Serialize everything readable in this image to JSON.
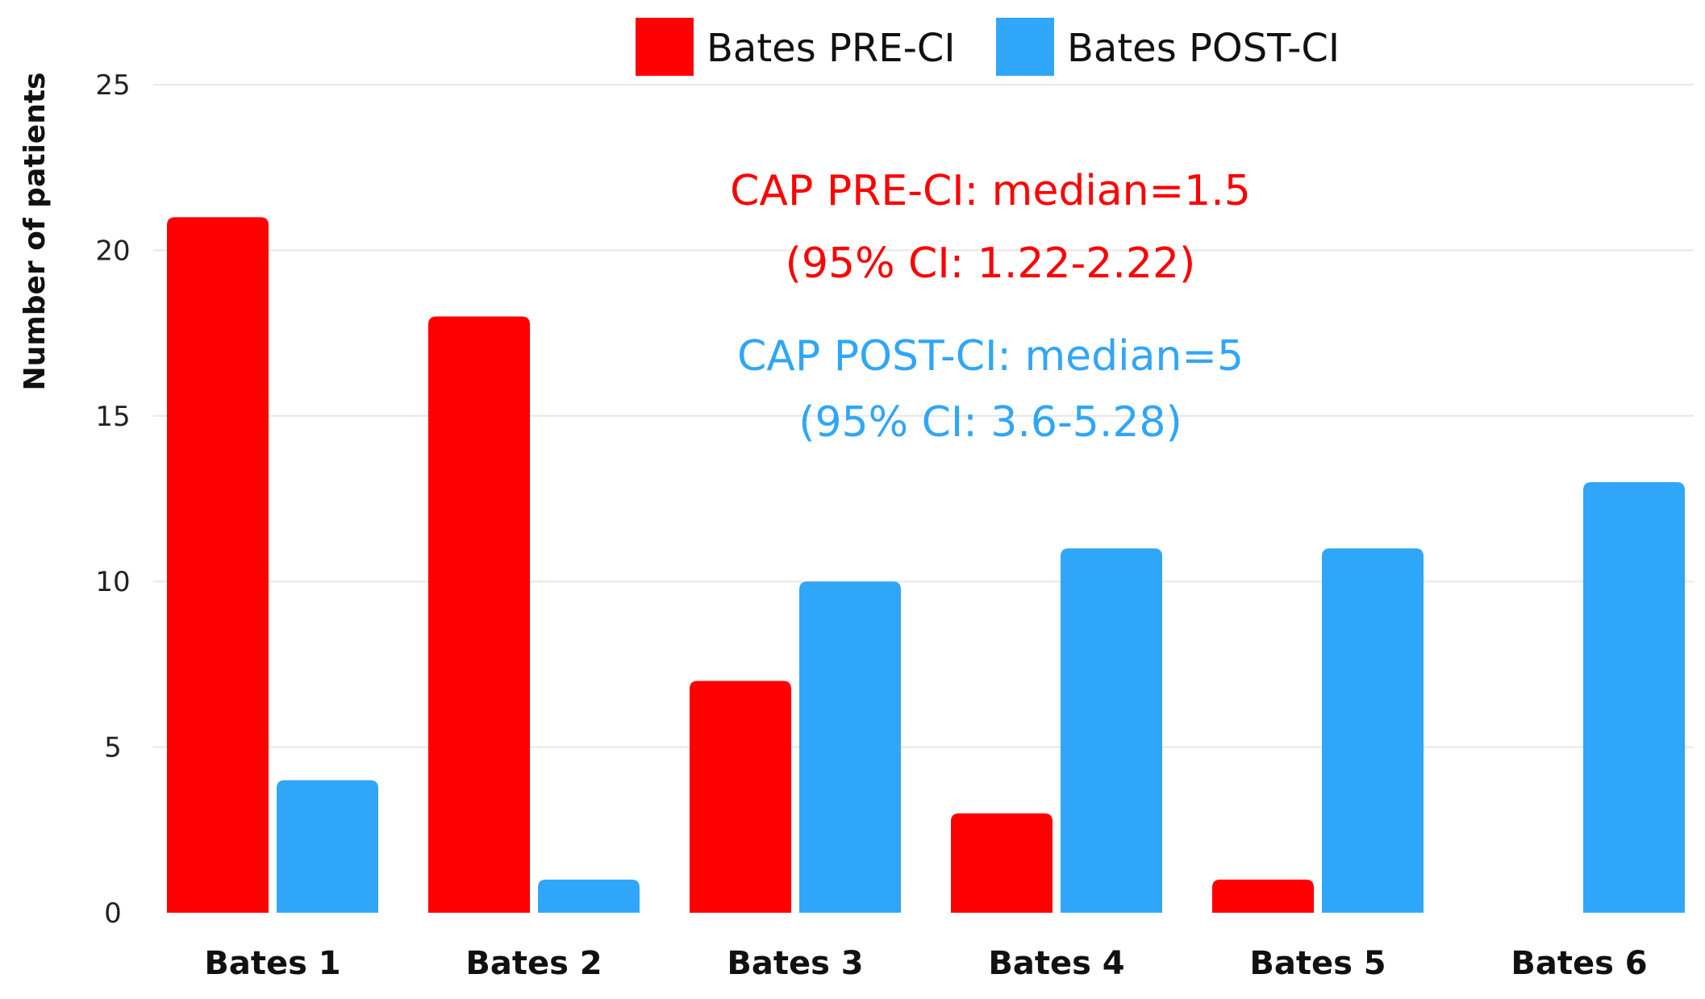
{
  "chart_data": {
    "type": "bar",
    "title": "",
    "xlabel": "",
    "ylabel": "Number of patients",
    "ylim": [
      0,
      25
    ],
    "yticks": [
      0,
      5,
      10,
      15,
      20,
      25
    ],
    "grid": true,
    "legend_position": "top",
    "categories": [
      "Bates 1",
      "Bates 2",
      "Bates 3",
      "Bates 4",
      "Bates 5",
      "Bates 6"
    ],
    "series": [
      {
        "name": "Bates PRE-CI",
        "color": "#ff0000",
        "values": [
          21,
          18,
          7,
          3,
          1,
          0
        ]
      },
      {
        "name": "Bates POST-CI",
        "color": "#30a6f8",
        "values": [
          4,
          1,
          10,
          11,
          11,
          13
        ]
      }
    ],
    "annotations": [
      {
        "lines": [
          "CAP PRE-CI: median=1.5",
          "(95% CI: 1.22-2.22)"
        ],
        "color": "#ff0000"
      },
      {
        "lines": [
          "CAP POST-CI: median=5",
          "(95% CI: 3.6-5.28)"
        ],
        "color": "#30a6f8"
      }
    ]
  }
}
